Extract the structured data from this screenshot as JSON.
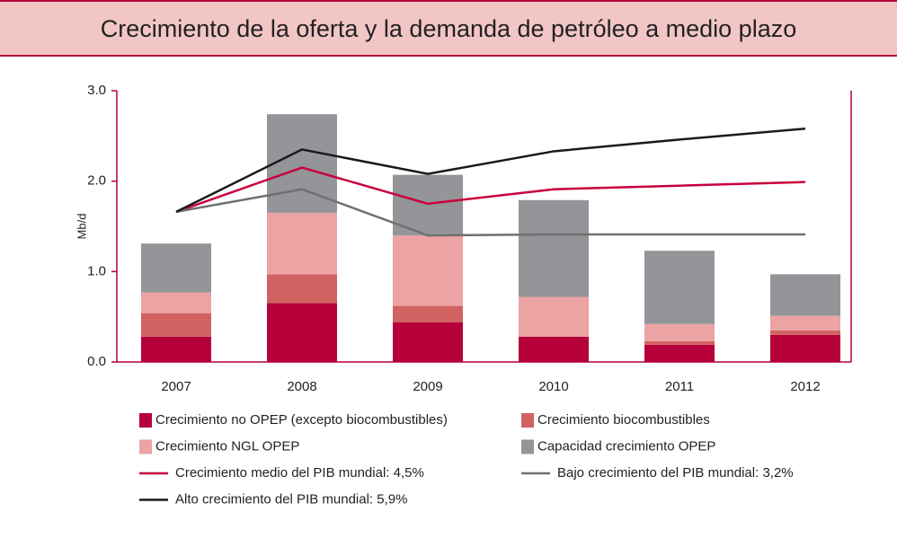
{
  "chart_data": {
    "type": "bar",
    "title": "Crecimiento de la oferta y la demanda de petróleo a medio plazo",
    "y_label": "Mb/d",
    "categories": [
      "2007",
      "2008",
      "2009",
      "2010",
      "2011",
      "2012"
    ],
    "series": [
      {
        "name": "Crecimiento no OPEP (excepto biocombustibles)",
        "type": "bar",
        "color": "#b5003a",
        "values": [
          0.28,
          0.65,
          0.44,
          0.28,
          0.19,
          0.3
        ]
      },
      {
        "name": "Crecimiento biocombustibles",
        "type": "bar",
        "color": "#d06262",
        "values": [
          0.26,
          0.32,
          0.18,
          0,
          0.04,
          0.05
        ]
      },
      {
        "name": "Crecimiento NGL OPEP",
        "type": "bar",
        "color": "#eba3a3",
        "values": [
          0.23,
          0.68,
          0.78,
          0.44,
          0.19,
          0.16
        ]
      },
      {
        "name": "Capacidad crecimiento OPEP",
        "type": "bar",
        "color": "#939598",
        "values": [
          0.54,
          1.09,
          0.67,
          1.07,
          0.81,
          0.46
        ]
      },
      {
        "name": "Crecimiento medio del PIB mundial: 4,5%",
        "type": "line",
        "color": "#c8003c",
        "values": [
          1.66,
          2.15,
          1.75,
          1.91,
          1.95,
          1.99
        ]
      },
      {
        "name": "Bajo crecimiento del PIB mundial: 3,2%",
        "type": "line",
        "color": "#707070",
        "values": [
          1.66,
          1.91,
          1.4,
          1.41,
          1.41,
          1.41
        ]
      },
      {
        "name": "Alto crecimiento del PIB mundial: 5,9%",
        "type": "line",
        "color": "#1a1a1a",
        "values": [
          1.66,
          2.35,
          2.08,
          2.33,
          2.46,
          2.58
        ]
      }
    ],
    "ylim": [
      0,
      3
    ],
    "yticks": [
      {
        "value": 0,
        "label": "0.0"
      },
      {
        "value": 1,
        "label": "1.0"
      },
      {
        "value": 2,
        "label": "2.0"
      },
      {
        "value": 3,
        "label": "3.0"
      }
    ]
  }
}
